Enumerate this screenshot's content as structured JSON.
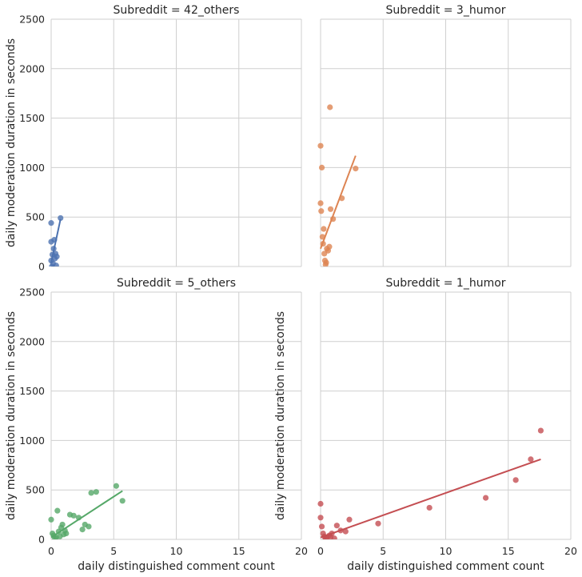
{
  "chart_data": [
    {
      "type": "scatter",
      "title": "Subreddit = 42_others",
      "xlabel": "",
      "ylabel": "daily moderation duration in seconds",
      "xlim": [
        0,
        20
      ],
      "ylim": [
        0,
        2500
      ],
      "xticks": [
        "0",
        "5",
        "10",
        "15",
        "20"
      ],
      "yticks": [
        "0",
        "500",
        "1000",
        "1500",
        "2000",
        "2500"
      ],
      "show_xticklabels": false,
      "show_yticklabels": true,
      "grid": true,
      "color": "#4c72b0",
      "points": [
        [
          0.0,
          440
        ],
        [
          0.0,
          250
        ],
        [
          0.0,
          60
        ],
        [
          0.1,
          120
        ],
        [
          0.15,
          30
        ],
        [
          0.25,
          270
        ],
        [
          0.3,
          80
        ],
        [
          0.35,
          130
        ],
        [
          0.4,
          10
        ],
        [
          0.45,
          100
        ],
        [
          0.75,
          490
        ],
        [
          0.05,
          0
        ],
        [
          0.2,
          180
        ]
      ],
      "fit": [
        [
          0.0,
          40
        ],
        [
          0.75,
          480
        ]
      ]
    },
    {
      "type": "scatter",
      "title": "Subreddit = 3_humor",
      "xlabel": "",
      "ylabel": "",
      "xlim": [
        0,
        20
      ],
      "ylim": [
        0,
        2500
      ],
      "xticks": [
        "0",
        "5",
        "10",
        "15",
        "20"
      ],
      "yticks": [
        "0",
        "500",
        "1000",
        "1500",
        "2000",
        "2500"
      ],
      "show_xticklabels": false,
      "show_yticklabels": false,
      "grid": true,
      "color": "#dd8452",
      "points": [
        [
          0.0,
          1220
        ],
        [
          0.1,
          1000
        ],
        [
          0.0,
          640
        ],
        [
          0.05,
          560
        ],
        [
          0.15,
          300
        ],
        [
          0.2,
          230
        ],
        [
          0.3,
          130
        ],
        [
          0.35,
          60
        ],
        [
          0.4,
          20
        ],
        [
          0.5,
          180
        ],
        [
          0.6,
          160
        ],
        [
          0.7,
          200
        ],
        [
          0.75,
          1610
        ],
        [
          0.8,
          580
        ],
        [
          1.0,
          480
        ],
        [
          1.7,
          690
        ],
        [
          2.8,
          990
        ],
        [
          0.25,
          380
        ],
        [
          0.45,
          40
        ]
      ],
      "fit": [
        [
          0.0,
          180
        ],
        [
          2.8,
          1120
        ]
      ]
    },
    {
      "type": "scatter",
      "title": "Subreddit = 5_others",
      "xlabel": "daily distinguished comment count",
      "ylabel": "daily moderation duration in seconds",
      "xlim": [
        0,
        20
      ],
      "ylim": [
        0,
        2500
      ],
      "xticks": [
        "0",
        "5",
        "10",
        "15",
        "20"
      ],
      "yticks": [
        "0",
        "500",
        "1000",
        "1500",
        "2000",
        "2500"
      ],
      "show_xticklabels": true,
      "show_yticklabels": true,
      "grid": true,
      "color": "#55a868",
      "points": [
        [
          0.0,
          200
        ],
        [
          0.1,
          60
        ],
        [
          0.2,
          40
        ],
        [
          0.4,
          20
        ],
        [
          0.5,
          290
        ],
        [
          0.6,
          80
        ],
        [
          0.7,
          30
        ],
        [
          0.8,
          120
        ],
        [
          0.9,
          150
        ],
        [
          1.0,
          50
        ],
        [
          1.2,
          60
        ],
        [
          1.5,
          250
        ],
        [
          1.8,
          240
        ],
        [
          2.2,
          220
        ],
        [
          2.5,
          100
        ],
        [
          2.7,
          150
        ],
        [
          3.0,
          130
        ],
        [
          3.2,
          470
        ],
        [
          3.6,
          480
        ],
        [
          5.2,
          540
        ],
        [
          5.7,
          390
        ],
        [
          0.3,
          10
        ],
        [
          1.1,
          90
        ]
      ],
      "fit": [
        [
          0.0,
          20
        ],
        [
          5.7,
          490
        ]
      ]
    },
    {
      "type": "scatter",
      "title": "Subreddit = 1_humor",
      "xlabel": "daily distinguished comment count",
      "ylabel": "daily moderation duration in seconds",
      "xlim": [
        0,
        20
      ],
      "ylim": [
        0,
        2500
      ],
      "xticks": [
        "0",
        "5",
        "10",
        "15",
        "20"
      ],
      "yticks": [
        "0",
        "500",
        "1000",
        "1500",
        "2000",
        "2500"
      ],
      "show_xticklabels": true,
      "show_yticklabels": false,
      "grid": true,
      "color": "#c44e52",
      "points": [
        [
          0.0,
          360
        ],
        [
          0.0,
          220
        ],
        [
          0.1,
          130
        ],
        [
          0.2,
          60
        ],
        [
          0.3,
          30
        ],
        [
          0.5,
          20
        ],
        [
          0.7,
          40
        ],
        [
          0.9,
          60
        ],
        [
          1.1,
          10
        ],
        [
          1.3,
          140
        ],
        [
          1.6,
          90
        ],
        [
          2.0,
          80
        ],
        [
          2.3,
          200
        ],
        [
          4.6,
          160
        ],
        [
          8.7,
          320
        ],
        [
          13.2,
          420
        ],
        [
          15.6,
          600
        ],
        [
          16.8,
          810
        ],
        [
          17.6,
          1100
        ],
        [
          0.4,
          5
        ],
        [
          0.8,
          25
        ]
      ],
      "fit": [
        [
          0.0,
          20
        ],
        [
          17.6,
          810
        ]
      ]
    }
  ]
}
